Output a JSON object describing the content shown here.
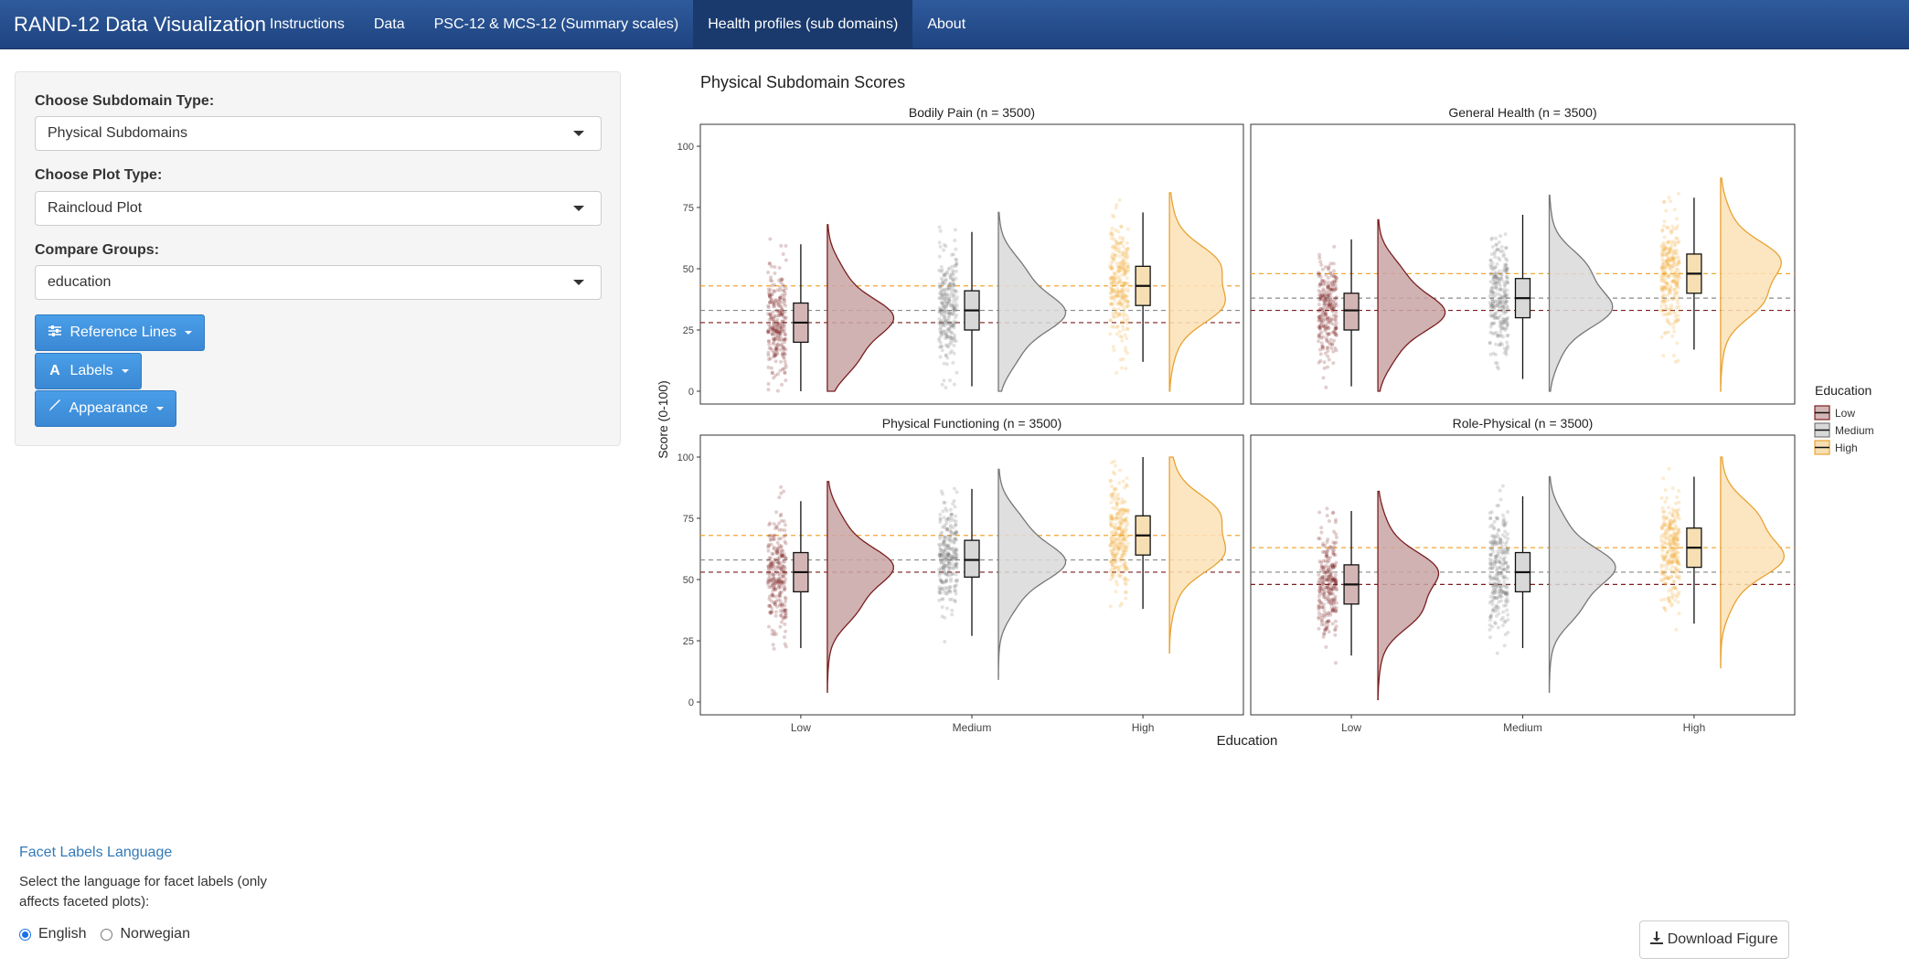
{
  "navbar": {
    "brand": "RAND-12 Data Visualization",
    "items": [
      {
        "label": "Instructions",
        "active": false
      },
      {
        "label": "Data",
        "active": false
      },
      {
        "label": "PSC-12 & MCS-12 (Summary scales)",
        "active": false
      },
      {
        "label": "Health profiles (sub domains)",
        "active": true
      },
      {
        "label": "About",
        "active": false
      }
    ]
  },
  "sidebar": {
    "subdomain_label": "Choose Subdomain Type:",
    "subdomain_value": "Physical Subdomains",
    "plot_type_label": "Choose Plot Type:",
    "plot_type_value": "Raincloud Plot",
    "compare_label": "Compare Groups:",
    "compare_value": "education",
    "buttons": {
      "reference_lines": "Reference Lines",
      "labels": "Labels",
      "appearance": "Appearance"
    }
  },
  "facet_language": {
    "title": "Facet Labels Language",
    "description": "Select the language for facet labels (only affects faceted plots):",
    "options": [
      "English",
      "Norwegian"
    ],
    "selected": "English"
  },
  "download_label": "Download Figure",
  "chart_data": {
    "type": "raincloud",
    "title": "Physical Subdomain Scores",
    "xlabel": "Education",
    "ylabel": "Score (0-100)",
    "ylim": [
      0,
      100
    ],
    "yticks": [
      0,
      25,
      50,
      75,
      100
    ],
    "categories": [
      "Low",
      "Medium",
      "High"
    ],
    "legend": {
      "title": "Education",
      "entries": [
        "Low",
        "Medium",
        "High"
      ],
      "position": "right"
    },
    "colors": {
      "Low": "#7a1f1f",
      "Medium": "#808080",
      "High": "#f0a830"
    },
    "facets": [
      {
        "title": "Bodily Pain (n = 3500)",
        "box": [
          {
            "group": "Low",
            "min": 0,
            "q1": 20,
            "median": 28,
            "q3": 36,
            "max": 60
          },
          {
            "group": "Medium",
            "min": 2,
            "q1": 25,
            "median": 33,
            "q3": 41,
            "max": 65
          },
          {
            "group": "High",
            "min": 12,
            "q1": 35,
            "median": 43,
            "q3": 51,
            "max": 73
          }
        ],
        "reference_means": {
          "Low": 28,
          "Medium": 33,
          "High": 43
        }
      },
      {
        "title": "General Health (n = 3500)",
        "box": [
          {
            "group": "Low",
            "min": 2,
            "q1": 25,
            "median": 33,
            "q3": 40,
            "max": 62
          },
          {
            "group": "Medium",
            "min": 5,
            "q1": 30,
            "median": 38,
            "q3": 46,
            "max": 72
          },
          {
            "group": "High",
            "min": 17,
            "q1": 40,
            "median": 48,
            "q3": 56,
            "max": 79
          }
        ],
        "reference_means": {
          "Low": 33,
          "Medium": 38,
          "High": 48
        }
      },
      {
        "title": "Physical Functioning (n = 3500)",
        "box": [
          {
            "group": "Low",
            "min": 22,
            "q1": 45,
            "median": 53,
            "q3": 61,
            "max": 82
          },
          {
            "group": "Medium",
            "min": 27,
            "q1": 51,
            "median": 58,
            "q3": 66,
            "max": 87
          },
          {
            "group": "High",
            "min": 38,
            "q1": 60,
            "median": 68,
            "q3": 76,
            "max": 100
          }
        ],
        "reference_means": {
          "Low": 53,
          "Medium": 58,
          "High": 68
        }
      },
      {
        "title": "Role-Physical (n = 3500)",
        "box": [
          {
            "group": "Low",
            "min": 19,
            "q1": 40,
            "median": 48,
            "q3": 56,
            "max": 78
          },
          {
            "group": "Medium",
            "min": 22,
            "q1": 45,
            "median": 53,
            "q3": 61,
            "max": 84
          },
          {
            "group": "High",
            "min": 32,
            "q1": 55,
            "median": 63,
            "q3": 71,
            "max": 92
          }
        ],
        "reference_means": {
          "Low": 48,
          "Medium": 53,
          "High": 63
        }
      }
    ]
  }
}
